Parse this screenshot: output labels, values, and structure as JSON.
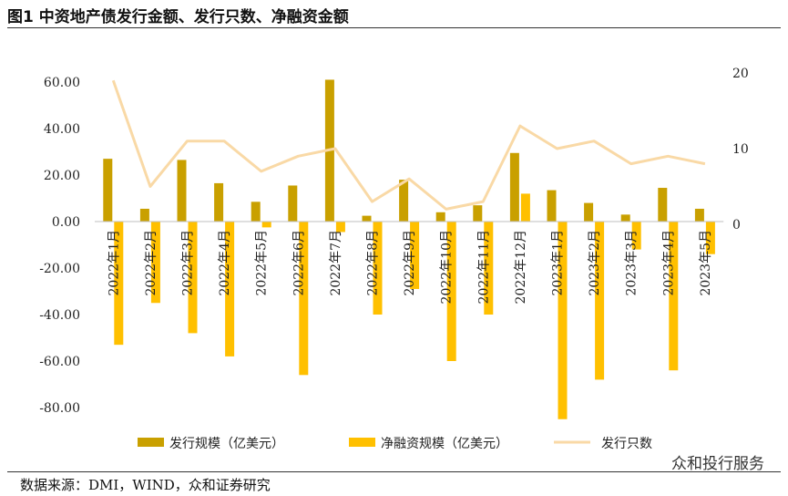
{
  "title": "图1 中资地产债发行金额、发行只数、净融资金额",
  "source": "数据来源：DMI，WIND，众和证券研究",
  "watermark": "众和投行服务",
  "colors": {
    "issuance": "#C9A000",
    "net": "#FFC000",
    "count": "#F9D9A6"
  },
  "chart_data": {
    "type": "bar",
    "categories": [
      "2022年1月",
      "2022年2月",
      "2022年3月",
      "2022年4月",
      "2022年5月",
      "2022年6月",
      "2022年7月",
      "2022年8月",
      "2022年9月",
      "2022年10月",
      "2022年11月",
      "2022年12月",
      "2023年1月",
      "2023年2月",
      "2023年3月",
      "2023年4月",
      "2023年5月"
    ],
    "series": [
      {
        "name": "发行规模（亿美元）",
        "type": "bar",
        "axis": "left",
        "values": [
          27,
          5.5,
          26.5,
          16.5,
          8.5,
          15.5,
          61,
          2.5,
          18,
          4,
          7,
          29.5,
          13.5,
          8,
          3,
          14.5,
          5.5
        ]
      },
      {
        "name": "净融资规模（亿美元）",
        "type": "bar",
        "axis": "left",
        "values": [
          -53,
          -35,
          -48,
          -58,
          -2.5,
          -66,
          -4.5,
          -40,
          -29,
          -60,
          -40,
          12,
          -85,
          -68,
          -12,
          -64,
          -14
        ]
      },
      {
        "name": "发行只数",
        "type": "line",
        "axis": "right",
        "values": [
          19,
          5,
          11,
          11,
          7,
          9,
          10,
          3,
          6,
          2,
          3,
          13,
          10,
          11,
          8,
          9,
          8
        ]
      }
    ],
    "yleft": {
      "min": -90,
      "max": 70,
      "ticks": [
        "60.00",
        "40.00",
        "20.00",
        "0.00",
        "-20.00",
        "-40.00",
        "-60.00",
        "-80.00"
      ],
      "tick_values": [
        60,
        40,
        20,
        0,
        -20,
        -40,
        -60,
        -80
      ]
    },
    "yright": {
      "ticks": [
        "20",
        "10",
        "0"
      ],
      "tick_values": [
        20,
        10,
        0
      ]
    },
    "legend": "bottom"
  }
}
